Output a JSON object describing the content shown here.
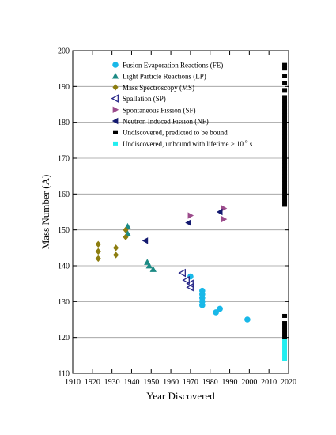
{
  "chart_data": {
    "type": "scatter",
    "xlabel": "Year Discovered",
    "ylabel": "Mass Number (A)",
    "xlim": [
      1910,
      2020
    ],
    "ylim": [
      110,
      200
    ],
    "xticks": [
      1910,
      1920,
      1930,
      1940,
      1950,
      1960,
      1970,
      1980,
      1990,
      2000,
      2010,
      2020
    ],
    "yticks": [
      110,
      120,
      130,
      140,
      150,
      160,
      170,
      180,
      190,
      200
    ],
    "grid": "horizontal",
    "legend_position": "top-left",
    "series": [
      {
        "name": "Fusion Evaporation Reactions (FE)",
        "marker": "circle",
        "color": "#19b8e8",
        "points": [
          [
            1970,
            137
          ],
          [
            1976,
            133
          ],
          [
            1976,
            132
          ],
          [
            1976,
            131
          ],
          [
            1976,
            130
          ],
          [
            1976,
            129
          ],
          [
            1983,
            127
          ],
          [
            1985,
            128
          ],
          [
            1999,
            125
          ]
        ]
      },
      {
        "name": "Light Particle Reactions (LP)",
        "marker": "triangle-up",
        "color": "#1c8a84",
        "points": [
          [
            1938,
            151
          ],
          [
            1938,
            149
          ],
          [
            1948,
            141
          ],
          [
            1949,
            140
          ],
          [
            1951,
            139
          ]
        ]
      },
      {
        "name": "Mass Spectroscopy (MS)",
        "marker": "diamond",
        "color": "#8c7d0f",
        "points": [
          [
            1923,
            146
          ],
          [
            1923,
            144
          ],
          [
            1923,
            142
          ],
          [
            1932,
            145
          ],
          [
            1932,
            143
          ],
          [
            1937,
            150
          ],
          [
            1937,
            148
          ]
        ]
      },
      {
        "name": "Spallation (SP)",
        "marker": "triangle-left-open",
        "color": "#2b2a8a",
        "points": [
          [
            1966,
            138
          ],
          [
            1968,
            136
          ],
          [
            1970,
            135
          ],
          [
            1970,
            134
          ]
        ]
      },
      {
        "name": "Spontaneous Fission (SF)",
        "marker": "triangle-right",
        "color": "#9c4c8c",
        "points": [
          [
            1970,
            154
          ],
          [
            1987,
            156
          ],
          [
            1987,
            153
          ]
        ]
      },
      {
        "name": "Neutron Induced Fission (NF)",
        "marker": "triangle-left",
        "color": "#141a70",
        "points": [
          [
            1947,
            147
          ],
          [
            1969,
            152
          ],
          [
            1985,
            155
          ]
        ]
      },
      {
        "name": "Undiscovered, predicted to be bound",
        "marker": "square",
        "color": "#000000",
        "points": [
          [
            2018,
            196
          ],
          [
            2018,
            195
          ],
          [
            2018,
            193
          ],
          [
            2018,
            191
          ],
          [
            2018,
            189
          ],
          [
            2018,
            187
          ],
          [
            2018,
            186
          ],
          [
            2018,
            185
          ],
          [
            2018,
            184
          ],
          [
            2018,
            183
          ],
          [
            2018,
            182
          ],
          [
            2018,
            181
          ],
          [
            2018,
            180
          ],
          [
            2018,
            179
          ],
          [
            2018,
            178
          ],
          [
            2018,
            177
          ],
          [
            2018,
            176
          ],
          [
            2018,
            175
          ],
          [
            2018,
            174
          ],
          [
            2018,
            173
          ],
          [
            2018,
            172
          ],
          [
            2018,
            171
          ],
          [
            2018,
            170
          ],
          [
            2018,
            169
          ],
          [
            2018,
            168
          ],
          [
            2018,
            167
          ],
          [
            2018,
            166
          ],
          [
            2018,
            165
          ],
          [
            2018,
            164
          ],
          [
            2018,
            163
          ],
          [
            2018,
            162
          ],
          [
            2018,
            161
          ],
          [
            2018,
            160
          ],
          [
            2018,
            159
          ],
          [
            2018,
            158
          ],
          [
            2018,
            157
          ],
          [
            2018,
            126
          ],
          [
            2018,
            124
          ],
          [
            2018,
            123
          ],
          [
            2018,
            122
          ],
          [
            2018,
            121
          ],
          [
            2018,
            120
          ]
        ]
      },
      {
        "name": "Undiscovered, unbound with lifetime > 10⁻⁹ s",
        "legend_prefix": "Undiscovered, unbound with lifetime > 10",
        "legend_exponent": "-9",
        "legend_suffix": " s",
        "marker": "square",
        "color": "#22eef0",
        "points": [
          [
            2018,
            119
          ],
          [
            2018,
            118
          ],
          [
            2018,
            117
          ],
          [
            2018,
            116
          ],
          [
            2018,
            115
          ],
          [
            2018,
            114
          ]
        ]
      }
    ]
  }
}
